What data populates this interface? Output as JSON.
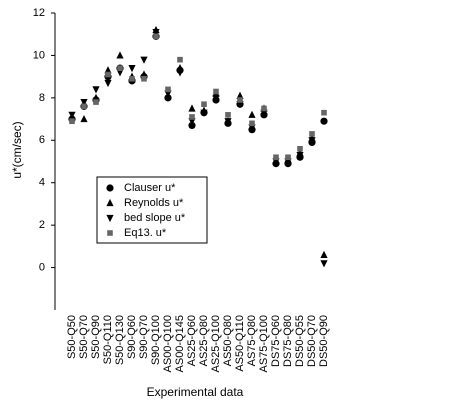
{
  "chart_data": {
    "type": "scatter",
    "y_label": "u*(cm/sec)",
    "x_label": "Experimental data",
    "categories": [
      "S50-Q50",
      "S50-Q70",
      "S50-Q90",
      "S50-Q110",
      "S50-Q130",
      "S90-Q60",
      "S90-Q70",
      "S90-Q100",
      "AS00-Q100",
      "AS00-Q145",
      "AS25-Q60",
      "AS25-Q80",
      "AS25-Q100",
      "AS50-Q80",
      "AS50-Q110",
      "AS75-Q80",
      "AS75-Q100",
      "DS75-Q60",
      "DS75-Q80",
      "DS50-Q55",
      "DS50-Q70",
      "DS50-Q90"
    ],
    "ylim": [
      -2,
      12
    ],
    "yticks": [
      0,
      2,
      4,
      6,
      8,
      10,
      12
    ],
    "series": [
      {
        "name": "Clauser u*",
        "color": "#000000",
        "marker": "circle",
        "values": [
          7.0,
          7.6,
          7.9,
          9.0,
          9.4,
          8.8,
          9.0,
          10.9,
          8.0,
          9.3,
          6.7,
          7.3,
          7.9,
          6.8,
          7.7,
          6.5,
          7.2,
          4.9,
          4.9,
          5.2,
          5.9,
          6.9
        ]
      },
      {
        "name": "Reynolds u*",
        "color": "#000000",
        "marker": "triangle-up",
        "values": [
          7.1,
          7.0,
          8.0,
          9.3,
          10.0,
          9.0,
          9.1,
          11.2,
          8.1,
          9.4,
          7.5,
          7.4,
          8.2,
          6.9,
          8.1,
          7.2,
          7.5,
          5.0,
          5.1,
          5.4,
          6.1,
          0.6
        ]
      },
      {
        "name": "bed slope u*",
        "color": "#000000",
        "marker": "triangle-down",
        "values": [
          7.2,
          7.8,
          8.4,
          8.7,
          9.2,
          9.4,
          9.8,
          11.1,
          8.2,
          9.2,
          6.9,
          7.3,
          8.0,
          6.9,
          7.7,
          6.6,
          7.3,
          5.0,
          5.0,
          5.3,
          6.0,
          0.2
        ]
      },
      {
        "name": "Eq13. u*",
        "color": "#666666",
        "marker": "square",
        "values": [
          6.9,
          7.6,
          7.8,
          9.1,
          9.4,
          8.9,
          8.9,
          10.9,
          8.4,
          9.8,
          7.1,
          7.7,
          8.3,
          7.2,
          7.9,
          6.8,
          7.5,
          5.2,
          5.2,
          5.6,
          6.3,
          7.3
        ]
      }
    ]
  }
}
